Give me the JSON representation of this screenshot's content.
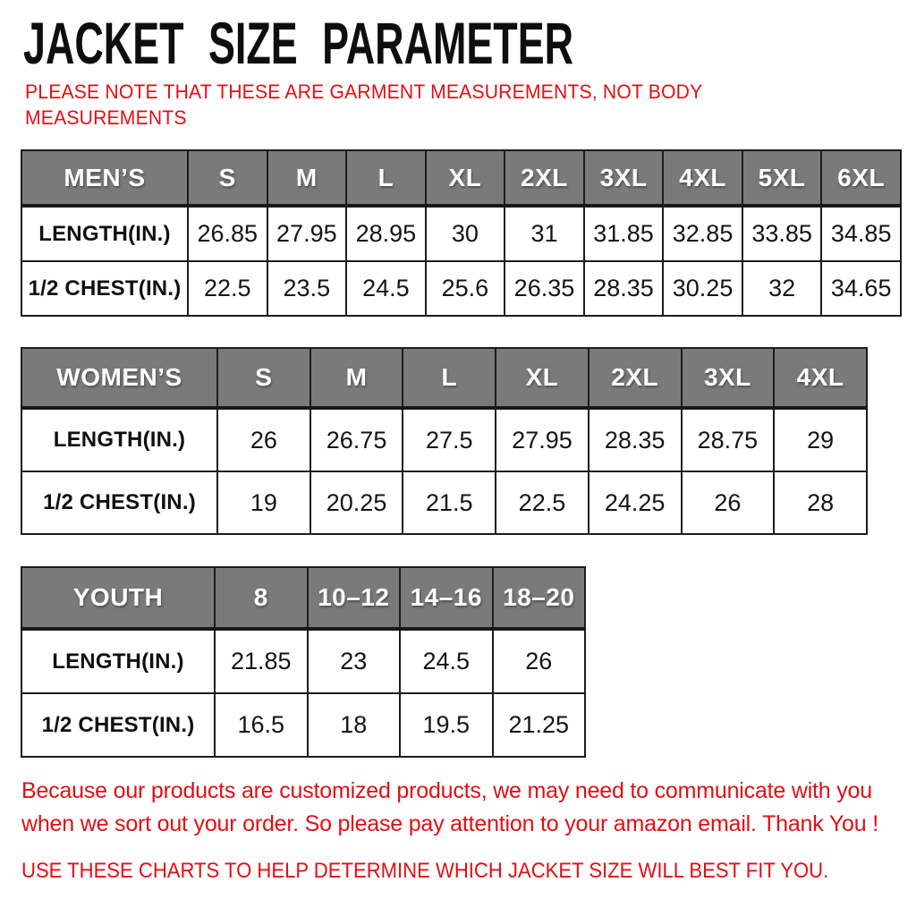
{
  "page": {
    "title": "JACKET SIZE PARAMETER",
    "subtitle": "PLEASE NOTE THAT THESE ARE GARMENT MEASUREMENTS, NOT BODY MEASUREMENTS",
    "footer_note": "Because our products are customized products, we may need to communicate with you when we sort out your order. So please pay attention to your amazon email. Thank You !",
    "footer_tip": "USE THESE CHARTS TO HELP DETERMINE WHICH JACKET SIZE WILL BEST FIT YOU."
  },
  "colors": {
    "accent_red": "#e30e14",
    "header_gray": "#7a7a7a",
    "border_dark": "#1c1c1c",
    "background": "#ffffff"
  },
  "tables": [
    {
      "name": "mens",
      "header": [
        "MEN’S",
        "S",
        "M",
        "L",
        "XL",
        "2XL",
        "3XL",
        "4XL",
        "5XL",
        "6XL"
      ],
      "rows": [
        {
          "label": "LENGTH(IN.)",
          "values": [
            "26.85",
            "27.95",
            "28.95",
            "30",
            "31",
            "31.85",
            "32.85",
            "33.85",
            "34.85"
          ]
        },
        {
          "label": "1/2 CHEST(IN.)",
          "values": [
            "22.5",
            "23.5",
            "24.5",
            "25.6",
            "26.35",
            "28.35",
            "30.25",
            "32",
            "34.65"
          ]
        }
      ]
    },
    {
      "name": "womens",
      "header": [
        "WOMEN’S",
        "S",
        "M",
        "L",
        "XL",
        "2XL",
        "3XL",
        "4XL"
      ],
      "rows": [
        {
          "label": "LENGTH(IN.)",
          "values": [
            "26",
            "26.75",
            "27.5",
            "27.95",
            "28.35",
            "28.75",
            "29"
          ]
        },
        {
          "label": "1/2 CHEST(IN.)",
          "values": [
            "19",
            "20.25",
            "21.5",
            "22.5",
            "24.25",
            "26",
            "28"
          ]
        }
      ]
    },
    {
      "name": "youth",
      "header": [
        "YOUTH",
        "8",
        "10–12",
        "14–16",
        "18–20"
      ],
      "rows": [
        {
          "label": "LENGTH(IN.)",
          "values": [
            "21.85",
            "23",
            "24.5",
            "26"
          ]
        },
        {
          "label": "1/2 CHEST(IN.)",
          "values": [
            "16.5",
            "18",
            "19.5",
            "21.25"
          ]
        }
      ]
    }
  ]
}
